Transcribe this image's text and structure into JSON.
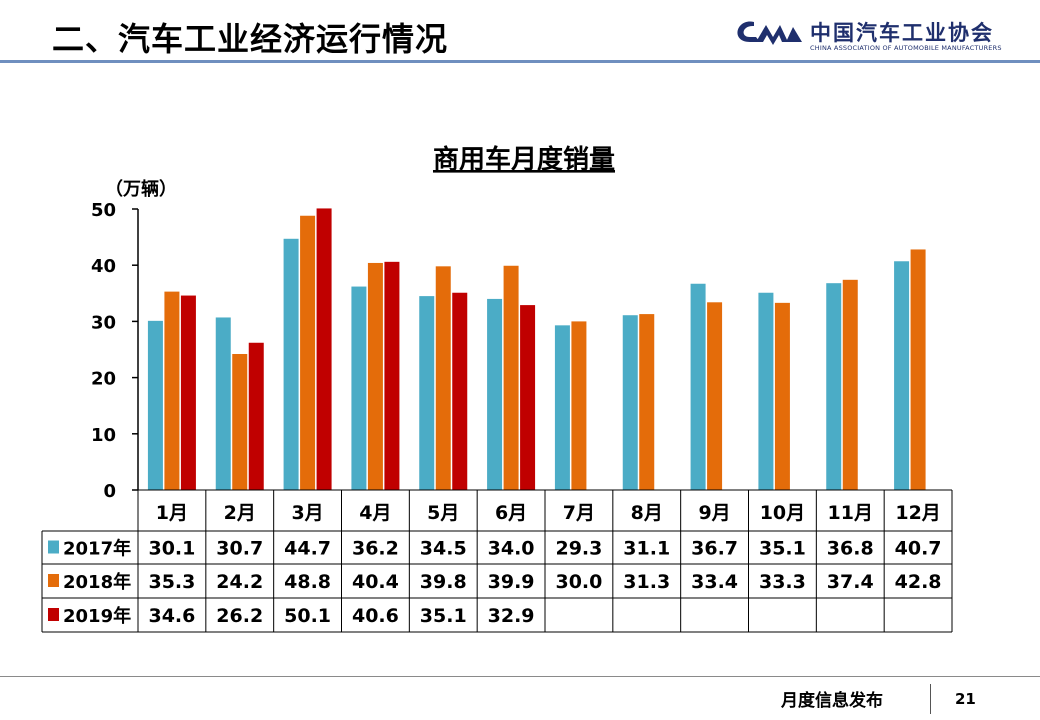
{
  "header": {
    "title": "二、汽车工业经济运行情况",
    "logo_name": "中国汽车工业协会",
    "logo_english": "CHINA ASSOCIATION OF AUTOMOBILE MANUFACTURERS"
  },
  "footer": {
    "text": "月度信息发布",
    "page_number": "21"
  },
  "colors": {
    "s2017": "#4bacc6",
    "s2018": "#e46c0a",
    "s2019": "#c00000",
    "header_rule": "#6f8fbf",
    "logo": "#1f2f6d"
  },
  "chart_data": {
    "type": "bar",
    "title": "商用车月度销量",
    "ylabel": "（万辆）",
    "xlabel": "",
    "ylim": [
      0,
      50
    ],
    "yticks": [
      0,
      10,
      20,
      30,
      40,
      50
    ],
    "grid": false,
    "categories": [
      "1月",
      "2月",
      "3月",
      "4月",
      "5月",
      "6月",
      "7月",
      "8月",
      "9月",
      "10月",
      "11月",
      "12月"
    ],
    "series": [
      {
        "name": "2017年",
        "color": "#4bacc6",
        "values": [
          30.1,
          30.7,
          44.7,
          36.2,
          34.5,
          34.0,
          29.3,
          31.1,
          36.7,
          35.1,
          36.8,
          40.7
        ]
      },
      {
        "name": "2018年",
        "color": "#e46c0a",
        "values": [
          35.3,
          24.2,
          48.8,
          40.4,
          39.8,
          39.9,
          30.0,
          31.3,
          33.4,
          33.3,
          37.4,
          42.8
        ]
      },
      {
        "name": "2019年",
        "color": "#c00000",
        "values": [
          34.6,
          26.2,
          50.1,
          40.6,
          35.1,
          32.9,
          null,
          null,
          null,
          null,
          null,
          null
        ]
      }
    ],
    "data_table": true
  }
}
